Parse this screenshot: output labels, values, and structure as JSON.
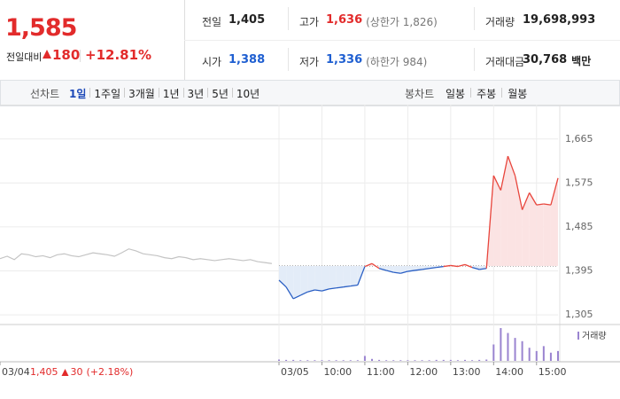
{
  "header": {
    "price": "1,585",
    "change_label": "전일대비",
    "change": "180",
    "change_rate": "+12.81%"
  },
  "summary": [
    [
      {
        "label": "전일",
        "value": "1,405",
        "color": "#222"
      },
      {
        "label": "고가",
        "value": "1,636",
        "note": "(상한가 1,826)",
        "color": "#e22b2b"
      },
      {
        "label": "거래량",
        "value": "19,698,993",
        "color": "#222"
      }
    ],
    [
      {
        "label": "시가",
        "value": "1,388",
        "color": "#1f5fd1"
      },
      {
        "label": "저가",
        "value": "1,336",
        "note": "(하한가 984)",
        "color": "#1f5fd1"
      },
      {
        "label": "거래대금",
        "value": "30,768",
        "unit": "백만",
        "color": "#222"
      }
    ]
  ],
  "tabs": {
    "line_label": "선차트",
    "periods": [
      "1일",
      "1주일",
      "3개월",
      "1년",
      "3년",
      "5년",
      "10년"
    ],
    "selected": 0,
    "candle_label": "봉차트",
    "candles": [
      "일봉",
      "주봉",
      "월봉"
    ]
  },
  "footer": {
    "price": "1,405",
    "change": "30",
    "rate": "(+2.18%)"
  },
  "chart_data": {
    "type": "line",
    "categories": [
      "03/04",
      null,
      null,
      null,
      null,
      null,
      null,
      null,
      null,
      null,
      null,
      null,
      null,
      null,
      null,
      null,
      null,
      null,
      null,
      null,
      null,
      null,
      null,
      null,
      null,
      null,
      null,
      null,
      null,
      null,
      null,
      null,
      null,
      null,
      null,
      null,
      null,
      null,
      null,
      "03/05",
      null,
      null,
      null,
      null,
      null,
      "10:00",
      null,
      null,
      null,
      null,
      null,
      "11:00",
      null,
      null,
      null,
      null,
      null,
      "12:00",
      null,
      null,
      null,
      null,
      null,
      "13:00",
      null,
      null,
      null,
      null,
      null,
      "14:00",
      null,
      null,
      null,
      null,
      null,
      "15:00",
      null,
      null,
      null
    ],
    "series": [
      {
        "color": "#c4c4c4",
        "values": [
          1420,
          1425,
          1418,
          1430,
          1428,
          1424,
          1426,
          1422,
          1428,
          1430,
          1426,
          1424,
          1428,
          1432,
          1430,
          1428,
          1425,
          1432,
          1440,
          1436,
          1430,
          1428,
          1426,
          1422,
          1420,
          1424,
          1422,
          1418,
          1420,
          1418,
          1416,
          1418,
          1420,
          1418,
          1416,
          1418,
          1414,
          1412,
          1410,
          null,
          null,
          null,
          null,
          null,
          null,
          null,
          null,
          null,
          null,
          null,
          null,
          null,
          null,
          null,
          null,
          null,
          null,
          null,
          null,
          null,
          null,
          null,
          null,
          null,
          null,
          null,
          null,
          null,
          null,
          null,
          null,
          null,
          null,
          null,
          null,
          null,
          null,
          null,
          null
        ]
      },
      {
        "color_up": "#e8453c",
        "color_down": "#2a5fc4",
        "fill_up": "#fbe3e3",
        "fill_down": "#e3ecf8",
        "values": [
          null,
          null,
          null,
          null,
          null,
          null,
          null,
          null,
          null,
          null,
          null,
          null,
          null,
          null,
          null,
          null,
          null,
          null,
          null,
          null,
          null,
          null,
          null,
          null,
          null,
          null,
          null,
          null,
          null,
          null,
          null,
          null,
          null,
          null,
          null,
          null,
          null,
          null,
          null,
          1376,
          1362,
          1338,
          1345,
          1352,
          1356,
          1354,
          1358,
          1360,
          1362,
          1364,
          1366,
          1404,
          1410,
          1400,
          1396,
          1392,
          1390,
          1394,
          1396,
          1398,
          1400,
          1402,
          1404,
          1406,
          1404,
          1408,
          1402,
          1398,
          1400,
          1590,
          1560,
          1630,
          1590,
          1520,
          1555,
          1530,
          1532,
          1530,
          1585
        ]
      }
    ],
    "baseline": 1405,
    "ylim": [
      1287,
      1690
    ],
    "yticks": [
      {
        "value": 1305,
        "label": "1,305"
      },
      {
        "value": 1395,
        "label": "1,395"
      },
      {
        "value": 1485,
        "label": "1,485"
      },
      {
        "value": 1575,
        "label": "1,575"
      },
      {
        "value": 1665,
        "label": "1,665"
      }
    ],
    "grid": true,
    "volume": {
      "label": "거래량",
      "color": "#9a84d0",
      "ylim": [
        0,
        100
      ],
      "values": [
        null,
        null,
        null,
        null,
        null,
        null,
        null,
        null,
        null,
        null,
        null,
        null,
        null,
        null,
        null,
        null,
        null,
        null,
        null,
        null,
        null,
        null,
        null,
        null,
        null,
        null,
        null,
        null,
        null,
        null,
        null,
        null,
        null,
        null,
        null,
        null,
        null,
        null,
        null,
        4,
        3,
        3,
        2,
        2,
        2,
        2,
        2,
        2,
        2,
        2,
        2,
        15,
        6,
        3,
        2,
        2,
        2,
        2,
        2,
        2,
        2,
        3,
        3,
        3,
        2,
        3,
        2,
        3,
        4,
        50,
        100,
        85,
        70,
        60,
        40,
        30,
        45,
        25,
        30
      ]
    }
  }
}
